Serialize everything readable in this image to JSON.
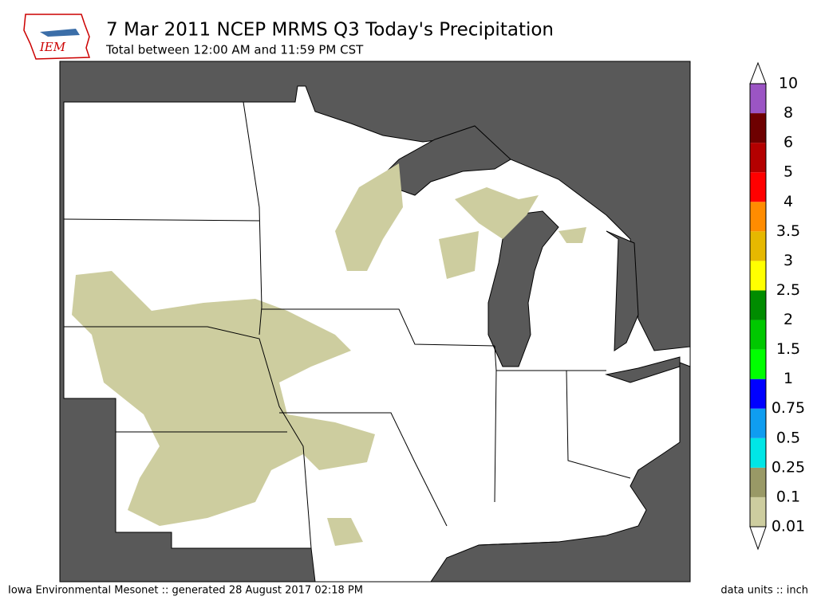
{
  "header": {
    "logo_text": "IEM",
    "title": "7 Mar 2011 NCEP MRMS Q3 Today's Precipitation",
    "subtitle": "Total between 12:00 AM and 11:59 PM CST"
  },
  "legend": {
    "levels": [
      0.01,
      0.1,
      0.25,
      0.5,
      0.75,
      1,
      1.5,
      2,
      2.5,
      3,
      3.5,
      4,
      5,
      6,
      8,
      10
    ],
    "colors": [
      "#cdcd9f",
      "#999966",
      "#00e6e6",
      "#0f9df0",
      "#0000ff",
      "#00ff00",
      "#00c800",
      "#008c00",
      "#ffff00",
      "#e6b800",
      "#ff8c00",
      "#ff0000",
      "#b40000",
      "#6e0000",
      "#9b55c4"
    ]
  },
  "footer": {
    "left": "Iowa Environmental Mesonet :: generated 28 August 2017 02:18 PM",
    "right": "data units :: inch"
  }
}
